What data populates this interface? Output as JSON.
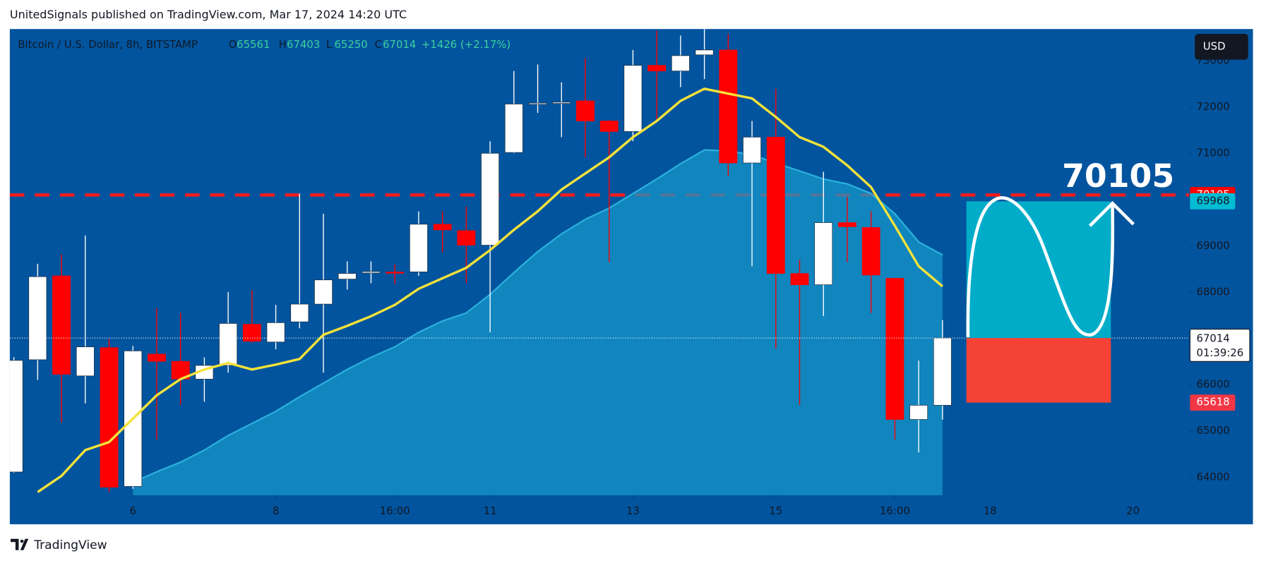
{
  "header": {
    "published": "UnitedSignals published on TradingView.com, Mar 17, 2024 14:20 UTC",
    "brand": "TradingView"
  },
  "chart_data": {
    "type": "candlestick",
    "symbol": "Bitcoin / U.S. Dollar, 8h, BITSTAMP",
    "ohlc_letters": [
      "O",
      "H",
      "L",
      "C"
    ],
    "change_label": "+1426 (+2.17%)",
    "currency": "USD",
    "countdown": "01:39:26",
    "up_color": "#ffffff",
    "down_color": "#ff0000",
    "background": "#02549e",
    "candles": {
      "open": [
        64120,
        66545,
        68357,
        66196,
        66806,
        63808,
        66667,
        66510,
        66126,
        66422,
        67312,
        66928,
        67364,
        67747,
        68287,
        68420,
        68440,
        68444,
        69473,
        69334,
        69020,
        71024,
        72080,
        72100,
        72139,
        71704,
        71477,
        72906,
        72784,
        73133,
        73238,
        70797,
        71355,
        68409,
        68165,
        69508,
        69403,
        68305,
        65255,
        65561
      ],
      "high": [
        66600,
        68619,
        68828,
        69229,
        66998,
        66841,
        67660,
        67555,
        66597,
        68009,
        68044,
        67730,
        70135,
        69699,
        68671,
        68671,
        68601,
        69752,
        69752,
        69856,
        71268,
        72784,
        72924,
        72540,
        73063,
        71720,
        73238,
        73656,
        73551,
        73691,
        73586,
        71704,
        72401,
        68706,
        70606,
        70065,
        69752,
        68305,
        66527,
        67403
      ],
      "low": [
        64100,
        66109,
        65185,
        65603,
        63686,
        63756,
        64819,
        65568,
        65638,
        66266,
        66911,
        66771,
        67224,
        66266,
        68061,
        68200,
        68183,
        68357,
        68863,
        68200,
        67137,
        71006,
        71878,
        71355,
        70919,
        68654,
        71268,
        71739,
        72436,
        72610,
        70518,
        68566,
        66788,
        65568,
        67486,
        68654,
        67555,
        64819,
        64540,
        65250
      ],
      "close": [
        66530,
        68340,
        66231,
        66823,
        63791,
        66736,
        66510,
        66126,
        66422,
        67329,
        66945,
        67346,
        67747,
        68270,
        68409,
        68450,
        68430,
        69473,
        69351,
        69020,
        71006,
        72070,
        72090,
        72110,
        71704,
        71477,
        72906,
        72784,
        73116,
        73238,
        70797,
        71355,
        68409,
        68165,
        69508,
        69420,
        68375,
        65255,
        65561,
        67014
      ]
    },
    "lines": [
      {
        "type": "area",
        "color": "#1596c8",
        "values": [
          null,
          null,
          null,
          null,
          null,
          63895,
          64122,
          64331,
          64592,
          64906,
          65168,
          65429,
          65743,
          66039,
          66335,
          66597,
          66823,
          67137,
          67381,
          67555,
          67956,
          68427,
          68880,
          69264,
          69577,
          69821,
          70135,
          70449,
          70780,
          71076,
          71059,
          70971,
          70797,
          70623,
          70449,
          70344,
          70135,
          69699,
          69089,
          68810
        ]
      },
      {
        "type": "line",
        "color": "#f4e23a",
        "values": [
          null,
          63686,
          64035,
          64592,
          64766,
          65272,
          65777,
          66126,
          66335,
          66475,
          66335,
          66440,
          66562,
          67085,
          67277,
          67486,
          67730,
          68078,
          68305,
          68531,
          68915,
          69351,
          69752,
          70222,
          70571,
          70919,
          71355,
          71704,
          72139,
          72401,
          72296,
          72192,
          71791,
          71355,
          71146,
          70745,
          70274,
          69438,
          68566,
          68130
        ]
      }
    ],
    "levels": {
      "target": 70105,
      "take_profit": 69968,
      "prev_close": 67015,
      "entry": 67014,
      "stop": 65618
    },
    "xlim": [
      -0.17,
      49.36
    ],
    "xticks": [
      {
        "value": 5,
        "label": "6"
      },
      {
        "value": 11,
        "label": "8"
      },
      {
        "value": 16,
        "label": "16:00"
      },
      {
        "value": 20,
        "label": "11"
      },
      {
        "value": 26,
        "label": "13"
      },
      {
        "value": 32,
        "label": "15"
      },
      {
        "value": 37,
        "label": "16:00"
      },
      {
        "value": 41,
        "label": "18"
      },
      {
        "value": 47,
        "label": "20"
      }
    ],
    "ylim": [
      63617,
      73691
    ],
    "yticks": [
      64000,
      65000,
      66000,
      67000,
      68000,
      69000,
      70000,
      71000,
      72000,
      73000
    ]
  }
}
